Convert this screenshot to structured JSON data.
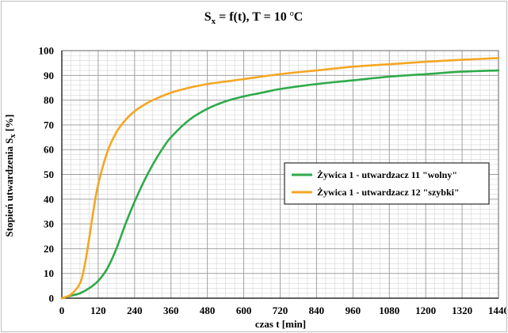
{
  "chart_data": {
    "type": "line",
    "title": {
      "main": "S",
      "sub": "x",
      "rest": " = f(t), T = 10 ",
      "deg": "o",
      "unit": "C"
    },
    "xlabel": "czas t [min]",
    "ylabel": {
      "main": "Stopień utwardzenia S",
      "sub": "x",
      "rest": " [%]"
    },
    "xlim": [
      0,
      1440
    ],
    "ylim": [
      0,
      100
    ],
    "x_ticks": [
      0,
      120,
      240,
      360,
      480,
      600,
      720,
      840,
      960,
      1080,
      1200,
      1320,
      1440
    ],
    "y_ticks": [
      0,
      10,
      20,
      30,
      40,
      50,
      60,
      70,
      80,
      90,
      100
    ],
    "grid": true,
    "legend_position": "center-right",
    "series": [
      {
        "name": "Żywica 1 - utwardzacz 11 \"wolny\"",
        "color": "#2eaa4a",
        "x": [
          0,
          30,
          60,
          90,
          120,
          150,
          180,
          210,
          240,
          270,
          300,
          330,
          360,
          420,
          480,
          540,
          600,
          660,
          720,
          840,
          960,
          1080,
          1200,
          1320,
          1440
        ],
        "y": [
          0,
          1,
          2,
          4,
          7,
          12,
          20,
          30,
          39,
          47,
          54,
          60,
          65,
          72,
          76.5,
          79.5,
          81.5,
          83,
          84.5,
          86.5,
          88,
          89.5,
          90.5,
          91.5,
          92
        ]
      },
      {
        "name": "Żywica 1 - utwardzacz 12 \"szybki\"",
        "color": "#f5a623",
        "x": [
          0,
          30,
          60,
          75,
          90,
          105,
          120,
          150,
          180,
          210,
          240,
          270,
          300,
          360,
          420,
          480,
          540,
          600,
          720,
          840,
          960,
          1080,
          1200,
          1320,
          1440
        ],
        "y": [
          0,
          1.5,
          6,
          13,
          24,
          36,
          46,
          59,
          67,
          72,
          75.5,
          78,
          80,
          83,
          85,
          86.5,
          87.5,
          88.5,
          90.5,
          92,
          93.5,
          94.5,
          95.5,
          96.3,
          97
        ]
      }
    ]
  }
}
